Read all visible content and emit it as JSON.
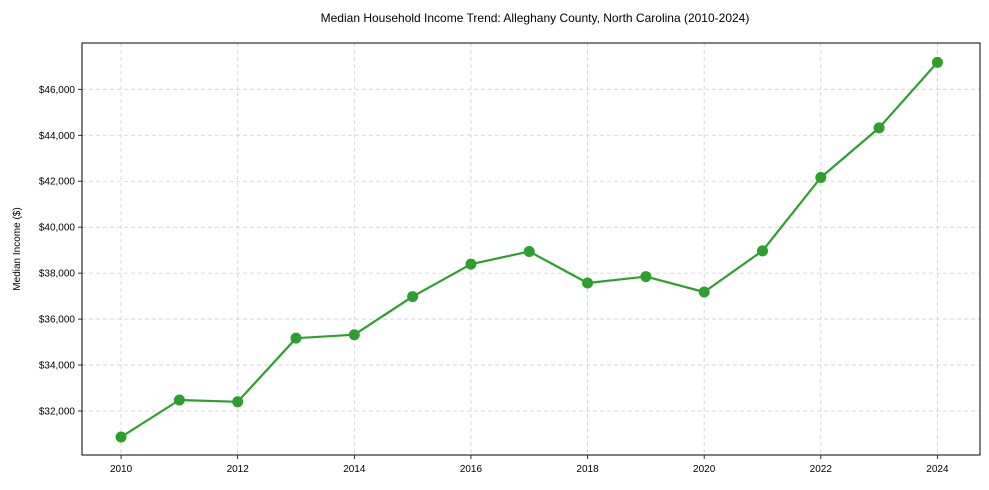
{
  "chart_data": {
    "type": "line",
    "title": "Median Household Income Trend: Alleghany County, North Carolina (2010-2024)",
    "xlabel": "",
    "ylabel": "Median Income ($)",
    "x": [
      2010,
      2011,
      2012,
      2013,
      2014,
      2015,
      2016,
      2017,
      2018,
      2019,
      2020,
      2021,
      2022,
      2023,
      2024
    ],
    "series": [
      {
        "name": "Median Household Income",
        "color": "#2ca02c",
        "values": [
          30870,
          32480,
          32400,
          35170,
          35320,
          36980,
          38390,
          38940,
          37570,
          37850,
          37180,
          38970,
          42160,
          44320,
          47170
        ]
      }
    ],
    "xticks": [
      2010,
      2012,
      2014,
      2016,
      2018,
      2020,
      2022,
      2024
    ],
    "xtick_labels": [
      "2010",
      "2012",
      "2014",
      "2016",
      "2018",
      "2020",
      "2022",
      "2024"
    ],
    "yticks": [
      32000,
      34000,
      36000,
      38000,
      40000,
      42000,
      44000,
      46000
    ],
    "ytick_labels": [
      "$32,000",
      "$34,000",
      "$36,000",
      "$38,000",
      "$40,000",
      "$42,000",
      "$44,000",
      "$46,000"
    ],
    "xlim": [
      2009.33,
      2024.73
    ],
    "ylim": [
      30085,
      48015
    ],
    "grid": true,
    "legend": null
  }
}
